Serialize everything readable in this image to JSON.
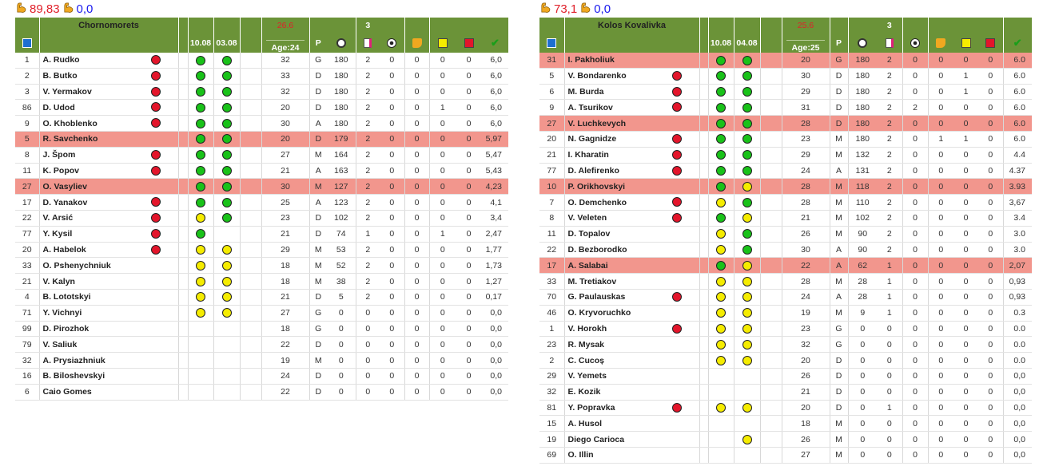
{
  "colors": {
    "header": "#6b9338",
    "highlight": "#f2968d",
    "green": "#19c219",
    "yellow": "#f5ec00",
    "red": "#e3152b"
  },
  "header_icons": [
    "squad-icon",
    "clock-icon",
    "appearances-icon",
    "ball-icon",
    "boot-icon",
    "yellow-card-icon",
    "red-card-icon",
    "check-icon"
  ],
  "teams": [
    {
      "strength_main": "89,83",
      "strength_alt": "0,0",
      "name": "Chornomorets",
      "dates": [
        "10.08",
        "03.08"
      ],
      "avg_age_top": "26.6",
      "age_label": "Age:24",
      "pos_label": "P",
      "apps_top": "3",
      "rows": [
        [
          "1",
          "A. Rudko",
          "r",
          "g",
          "g",
          "32",
          "G",
          "180",
          "2",
          "0",
          "0",
          "0",
          "0",
          "6,0",
          0
        ],
        [
          "2",
          "B. Butko",
          "r",
          "g",
          "g",
          "33",
          "D",
          "180",
          "2",
          "0",
          "0",
          "0",
          "0",
          "6,0",
          0
        ],
        [
          "3",
          "V. Yermakov",
          "r",
          "g",
          "g",
          "32",
          "D",
          "180",
          "2",
          "0",
          "0",
          "0",
          "0",
          "6,0",
          0
        ],
        [
          "86",
          "D. Udod",
          "r",
          "g",
          "g",
          "20",
          "D",
          "180",
          "2",
          "0",
          "0",
          "1",
          "0",
          "6,0",
          0
        ],
        [
          "9",
          "O. Khoblenko",
          "r",
          "g",
          "g",
          "30",
          "A",
          "180",
          "2",
          "0",
          "0",
          "0",
          "0",
          "6,0",
          0
        ],
        [
          "5",
          "R. Savchenko",
          "",
          "g",
          "g",
          "20",
          "D",
          "179",
          "2",
          "0",
          "0",
          "0",
          "0",
          "5,97",
          1
        ],
        [
          "8",
          "J. Špom",
          "r",
          "g",
          "g",
          "27",
          "M",
          "164",
          "2",
          "0",
          "0",
          "0",
          "0",
          "5,47",
          0
        ],
        [
          "11",
          "K. Popov",
          "r",
          "g",
          "g",
          "21",
          "A",
          "163",
          "2",
          "0",
          "0",
          "0",
          "0",
          "5,43",
          0
        ],
        [
          "27",
          "O. Vasyliev",
          "",
          "g",
          "g",
          "30",
          "M",
          "127",
          "2",
          "0",
          "0",
          "0",
          "0",
          "4,23",
          1
        ],
        [
          "17",
          "D. Yanakov",
          "r",
          "g",
          "g",
          "25",
          "A",
          "123",
          "2",
          "0",
          "0",
          "0",
          "0",
          "4,1",
          0
        ],
        [
          "22",
          "V. Arsić",
          "r",
          "y",
          "g",
          "23",
          "D",
          "102",
          "2",
          "0",
          "0",
          "0",
          "0",
          "3,4",
          0
        ],
        [
          "77",
          "Y. Kysil",
          "r",
          "g",
          "",
          "21",
          "D",
          "74",
          "1",
          "0",
          "0",
          "1",
          "0",
          "2,47",
          0
        ],
        [
          "20",
          "A. Habelok",
          "r",
          "y",
          "y",
          "29",
          "M",
          "53",
          "2",
          "0",
          "0",
          "0",
          "0",
          "1,77",
          0
        ],
        [
          "33",
          "O. Pshenychniuk",
          "",
          "y",
          "y",
          "18",
          "M",
          "52",
          "2",
          "0",
          "0",
          "0",
          "0",
          "1,73",
          0
        ],
        [
          "21",
          "V. Kalyn",
          "",
          "y",
          "y",
          "18",
          "M",
          "38",
          "2",
          "0",
          "0",
          "0",
          "0",
          "1,27",
          0
        ],
        [
          "4",
          "B. Lototskyi",
          "",
          "y",
          "y",
          "21",
          "D",
          "5",
          "2",
          "0",
          "0",
          "0",
          "0",
          "0,17",
          0
        ],
        [
          "71",
          "Y. Vichnyi",
          "",
          "y",
          "y",
          "27",
          "G",
          "0",
          "0",
          "0",
          "0",
          "0",
          "0",
          "0,0",
          0
        ],
        [
          "99",
          "D. Pirozhok",
          "",
          "",
          "",
          "18",
          "G",
          "0",
          "0",
          "0",
          "0",
          "0",
          "0",
          "0,0",
          0
        ],
        [
          "79",
          "V. Saliuk",
          "",
          "",
          "",
          "22",
          "D",
          "0",
          "0",
          "0",
          "0",
          "0",
          "0",
          "0,0",
          0
        ],
        [
          "32",
          "A. Prysiazhniuk",
          "",
          "",
          "",
          "19",
          "M",
          "0",
          "0",
          "0",
          "0",
          "0",
          "0",
          "0,0",
          0
        ],
        [
          "16",
          "B. Biloshevskyi",
          "",
          "",
          "",
          "24",
          "D",
          "0",
          "0",
          "0",
          "0",
          "0",
          "0",
          "0,0",
          0
        ],
        [
          "6",
          "Caio Gomes",
          "",
          "",
          "",
          "22",
          "D",
          "0",
          "0",
          "0",
          "0",
          "0",
          "0",
          "0,0",
          0
        ]
      ]
    },
    {
      "strength_main": "73,1",
      "strength_alt": "0,0",
      "name": "Kolos Kovalivka",
      "dates": [
        "10.08",
        "04.08"
      ],
      "avg_age_top": "25.6",
      "age_label": "Age:25",
      "pos_label": "P",
      "apps_top": "3",
      "rows": [
        [
          "31",
          "I. Pakholiuk",
          "",
          "g",
          "g",
          "20",
          "G",
          "180",
          "2",
          "0",
          "0",
          "0",
          "0",
          "6.0",
          1
        ],
        [
          "5",
          "V. Bondarenko",
          "r",
          "g",
          "g",
          "30",
          "D",
          "180",
          "2",
          "0",
          "0",
          "1",
          "0",
          "6.0",
          0
        ],
        [
          "6",
          "M. Burda",
          "r",
          "g",
          "g",
          "29",
          "D",
          "180",
          "2",
          "0",
          "0",
          "1",
          "0",
          "6.0",
          0
        ],
        [
          "9",
          "A. Tsurikov",
          "r",
          "g",
          "g",
          "31",
          "D",
          "180",
          "2",
          "2",
          "0",
          "0",
          "0",
          "6.0",
          0
        ],
        [
          "27",
          "V. Luchkevych",
          "",
          "g",
          "g",
          "28",
          "D",
          "180",
          "2",
          "0",
          "0",
          "0",
          "0",
          "6.0",
          1
        ],
        [
          "20",
          "N. Gagnidze",
          "r",
          "g",
          "g",
          "23",
          "M",
          "180",
          "2",
          "0",
          "1",
          "1",
          "0",
          "6.0",
          0
        ],
        [
          "21",
          "I. Kharatin",
          "r",
          "g",
          "g",
          "29",
          "M",
          "132",
          "2",
          "0",
          "0",
          "0",
          "0",
          "4.4",
          0
        ],
        [
          "77",
          "D. Alefirenko",
          "r",
          "g",
          "g",
          "24",
          "A",
          "131",
          "2",
          "0",
          "0",
          "0",
          "0",
          "4.37",
          0
        ],
        [
          "10",
          "P. Orikhovskyi",
          "",
          "g",
          "y",
          "28",
          "M",
          "118",
          "2",
          "0",
          "0",
          "0",
          "0",
          "3.93",
          1
        ],
        [
          "7",
          "O. Demchenko",
          "r",
          "y",
          "g",
          "28",
          "M",
          "110",
          "2",
          "0",
          "0",
          "0",
          "0",
          "3,67",
          0
        ],
        [
          "8",
          "V. Veleten",
          "r",
          "g",
          "y",
          "21",
          "M",
          "102",
          "2",
          "0",
          "0",
          "0",
          "0",
          "3.4",
          0
        ],
        [
          "11",
          "D. Topalov",
          "",
          "y",
          "g",
          "26",
          "M",
          "90",
          "2",
          "0",
          "0",
          "0",
          "0",
          "3.0",
          0
        ],
        [
          "22",
          "D. Bezborodko",
          "",
          "y",
          "g",
          "30",
          "A",
          "90",
          "2",
          "0",
          "0",
          "0",
          "0",
          "3.0",
          0
        ],
        [
          "17",
          "A. Salabai",
          "",
          "g",
          "y",
          "22",
          "A",
          "62",
          "1",
          "0",
          "0",
          "0",
          "0",
          "2,07",
          1
        ],
        [
          "33",
          "M. Tretiakov",
          "",
          "y",
          "y",
          "28",
          "M",
          "28",
          "1",
          "0",
          "0",
          "0",
          "0",
          "0,93",
          0
        ],
        [
          "70",
          "G. Paulauskas",
          "r",
          "y",
          "y",
          "24",
          "A",
          "28",
          "1",
          "0",
          "0",
          "0",
          "0",
          "0,93",
          0
        ],
        [
          "46",
          "O. Kryvoruchko",
          "",
          "y",
          "y",
          "19",
          "M",
          "9",
          "1",
          "0",
          "0",
          "0",
          "0",
          "0.3",
          0
        ],
        [
          "1",
          "V. Horokh",
          "r",
          "y",
          "y",
          "23",
          "G",
          "0",
          "0",
          "0",
          "0",
          "0",
          "0",
          "0.0",
          0
        ],
        [
          "23",
          "R. Mysak",
          "",
          "y",
          "y",
          "32",
          "G",
          "0",
          "0",
          "0",
          "0",
          "0",
          "0",
          "0.0",
          0
        ],
        [
          "2",
          "C. Cucoș",
          "",
          "y",
          "y",
          "20",
          "D",
          "0",
          "0",
          "0",
          "0",
          "0",
          "0",
          "0.0",
          0
        ],
        [
          "29",
          "V. Yemets",
          "",
          "",
          "",
          "26",
          "D",
          "0",
          "0",
          "0",
          "0",
          "0",
          "0",
          "0,0",
          0
        ],
        [
          "32",
          "E. Kozik",
          "",
          "",
          "",
          "21",
          "D",
          "0",
          "0",
          "0",
          "0",
          "0",
          "0",
          "0,0",
          0
        ],
        [
          "81",
          "Y. Popravka",
          "r",
          "y",
          "y",
          "20",
          "D",
          "0",
          "1",
          "0",
          "0",
          "0",
          "0",
          "0,0",
          0
        ],
        [
          "15",
          "A. Husol",
          "",
          "",
          "",
          "18",
          "M",
          "0",
          "0",
          "0",
          "0",
          "0",
          "0",
          "0,0",
          0
        ],
        [
          "19",
          "Diego Carioca",
          "",
          "",
          "y",
          "26",
          "M",
          "0",
          "0",
          "0",
          "0",
          "0",
          "0",
          "0,0",
          0
        ],
        [
          "69",
          "O. Illin",
          "",
          "",
          "",
          "27",
          "M",
          "0",
          "0",
          "0",
          "0",
          "0",
          "0",
          "0,0",
          0
        ]
      ]
    }
  ]
}
